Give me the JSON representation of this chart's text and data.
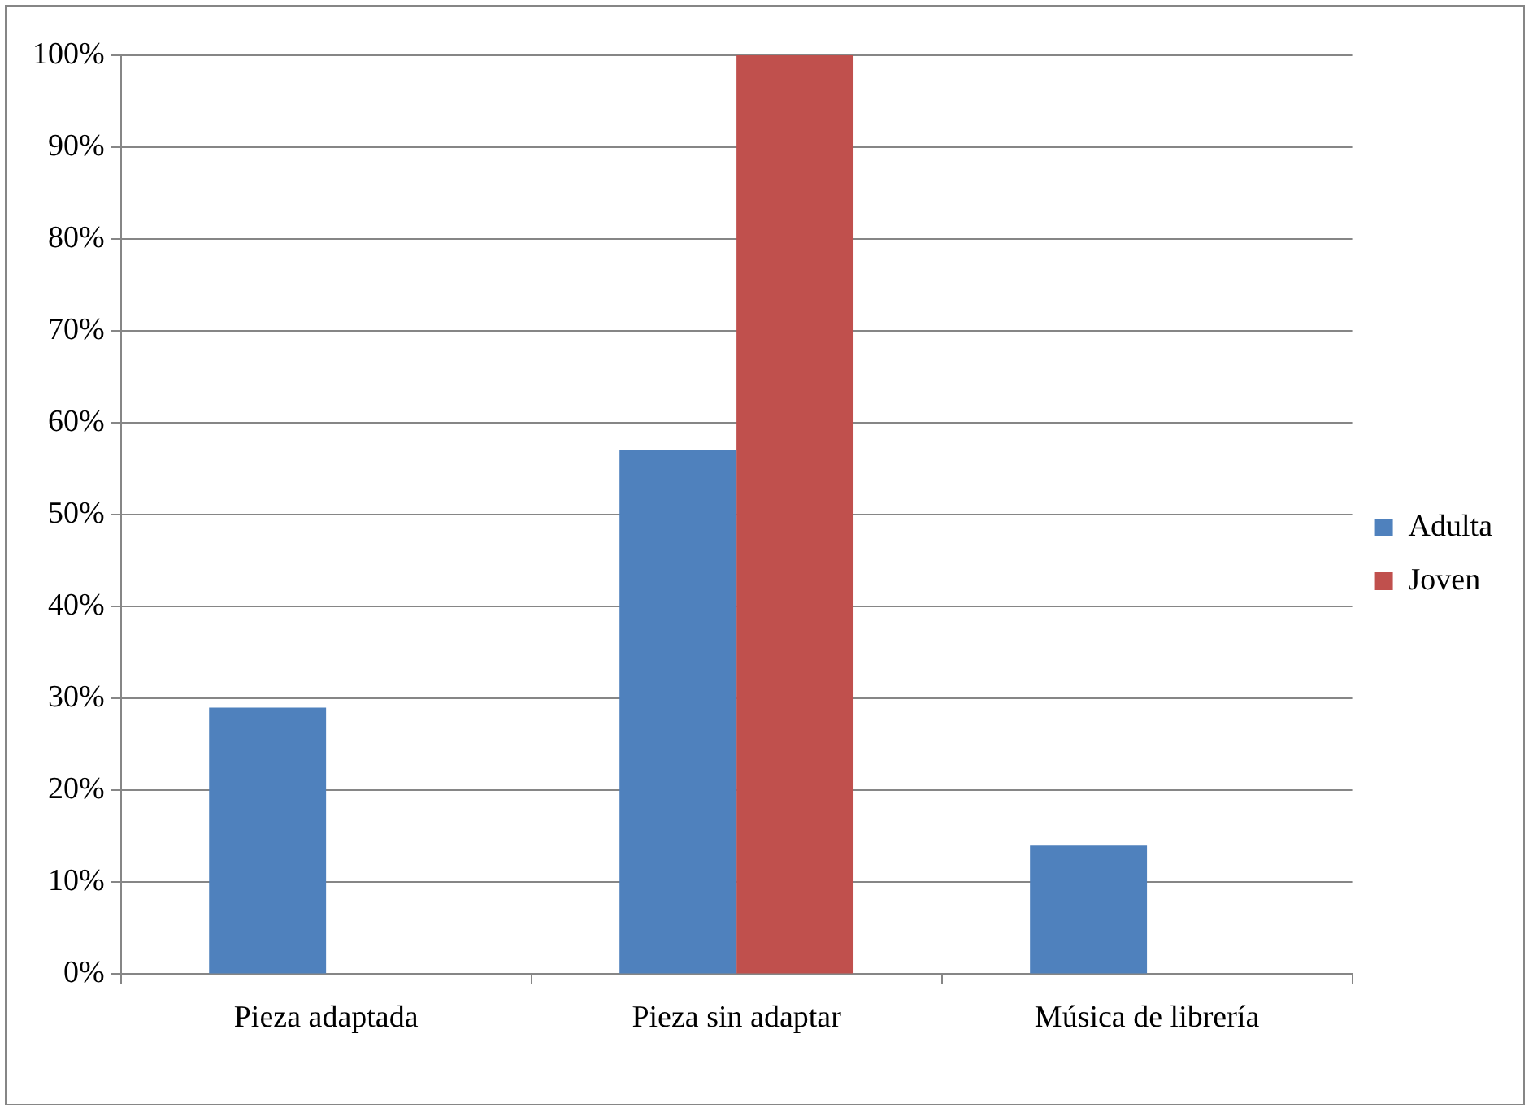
{
  "chart_data": {
    "type": "bar",
    "categories": [
      "Pieza adaptada",
      "Pieza sin adaptar",
      "Música de librería"
    ],
    "series": [
      {
        "name": "Adulta",
        "color": "#4f81bd",
        "values": [
          29,
          57,
          14
        ]
      },
      {
        "name": "Joven",
        "color": "#c0504d",
        "values": [
          0,
          100,
          0
        ]
      }
    ],
    "ylim": [
      0,
      100
    ],
    "yticks": [
      {
        "value": 0,
        "label": "0%"
      },
      {
        "value": 10,
        "label": "10%"
      },
      {
        "value": 20,
        "label": "20%"
      },
      {
        "value": 30,
        "label": "30%"
      },
      {
        "value": 40,
        "label": "40%"
      },
      {
        "value": 50,
        "label": "50%"
      },
      {
        "value": 60,
        "label": "60%"
      },
      {
        "value": 70,
        "label": "70%"
      },
      {
        "value": 80,
        "label": "80%"
      },
      {
        "value": 90,
        "label": "90%"
      },
      {
        "value": 100,
        "label": "100%"
      }
    ],
    "grid": "y",
    "legend": "right"
  }
}
